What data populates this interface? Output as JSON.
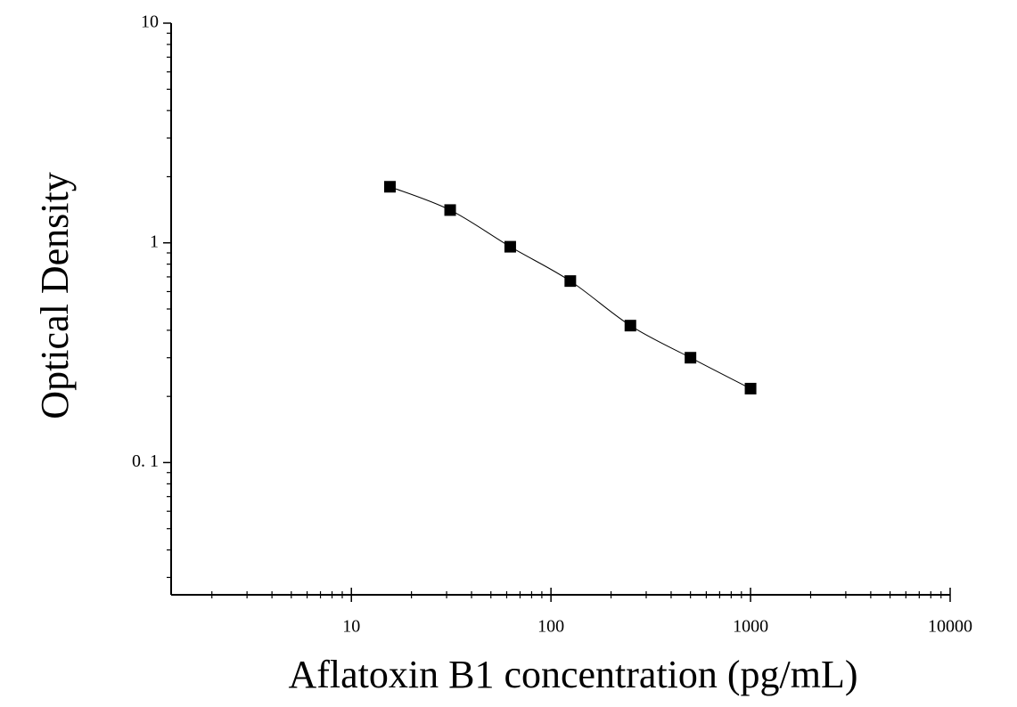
{
  "chart_data": {
    "type": "scatter",
    "x_label": "Aflatoxin B1 concentration (pg/mL)",
    "y_label": "Optical Density",
    "xscale": "log",
    "yscale": "log",
    "x": [
      15.6,
      31.25,
      62.5,
      125,
      250,
      500,
      1000
    ],
    "series": [
      {
        "color": "#000000",
        "values": [
          1.8,
          1.41,
          0.96,
          0.67,
          0.42,
          0.3,
          0.217
        ]
      }
    ],
    "fit_line": true,
    "xlim": [
      1.25,
      10000
    ],
    "ylim": [
      0.025,
      10
    ],
    "xticks": [
      10,
      100,
      1000,
      10000
    ],
    "yticks": [
      {
        "value": 0.1,
        "label": "0. 1"
      },
      1,
      10
    ],
    "xminorticks": [
      2,
      3,
      4,
      5,
      6,
      7,
      8,
      9,
      20,
      30,
      40,
      50,
      60,
      70,
      80,
      90,
      200,
      300,
      400,
      500,
      600,
      700,
      800,
      900,
      2000,
      3000,
      4000,
      5000,
      6000,
      7000,
      8000,
      9000
    ],
    "yminorticks": [
      0.03,
      0.04,
      0.05,
      0.06,
      0.07,
      0.08,
      0.09,
      0.2,
      0.3,
      0.4,
      0.5,
      0.6,
      0.7,
      0.8,
      0.9,
      2,
      3,
      4,
      5,
      6,
      7,
      8,
      9
    ]
  }
}
